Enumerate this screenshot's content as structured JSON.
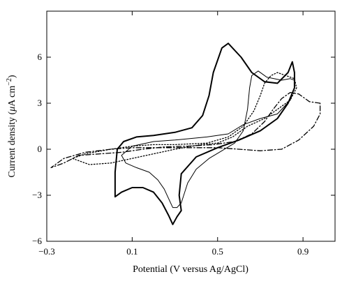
{
  "chart_data": {
    "type": "line",
    "title": "",
    "xlabel": "Potential (V versus Ag/AgCl)",
    "ylabel_prefix": "Current density (",
    "ylabel_mu": "μ",
    "ylabel_unit": "A cm",
    "ylabel_sup": "−2",
    "ylabel_suffix": ")",
    "xlim": [
      -0.3,
      1.05
    ],
    "ylim": [
      -6,
      9
    ],
    "x_ticks": [
      -0.3,
      0.1,
      0.5,
      0.9
    ],
    "x_tick_labels": [
      "−0.3",
      "0.1",
      "0.5",
      "0.9"
    ],
    "y_ticks": [
      -6,
      -3,
      0,
      3,
      6
    ],
    "y_tick_labels": [
      "−6",
      "−3",
      "0",
      "3",
      "6"
    ],
    "grid": false,
    "legend": "none",
    "series": [
      {
        "style": "solid-thick",
        "points": [
          [
            0.33,
            -4.0
          ],
          [
            0.32,
            -3.0
          ],
          [
            0.33,
            -1.6
          ],
          [
            0.4,
            -0.5
          ],
          [
            0.5,
            0.1
          ],
          [
            0.6,
            0.6
          ],
          [
            0.7,
            1.2
          ],
          [
            0.78,
            2.0
          ],
          [
            0.83,
            3.0
          ],
          [
            0.86,
            4.0
          ],
          [
            0.86,
            5.0
          ],
          [
            0.85,
            5.7
          ],
          [
            0.83,
            5.0
          ],
          [
            0.78,
            4.3
          ],
          [
            0.72,
            4.4
          ],
          [
            0.66,
            5.0
          ],
          [
            0.61,
            6.0
          ],
          [
            0.55,
            6.9
          ],
          [
            0.52,
            6.6
          ],
          [
            0.48,
            5.0
          ],
          [
            0.46,
            3.5
          ],
          [
            0.43,
            2.2
          ],
          [
            0.38,
            1.4
          ],
          [
            0.3,
            1.1
          ],
          [
            0.2,
            0.9
          ],
          [
            0.12,
            0.8
          ],
          [
            0.06,
            0.5
          ],
          [
            0.03,
            0.0
          ],
          [
            0.02,
            -1.5
          ],
          [
            0.02,
            -3.1
          ],
          [
            0.05,
            -2.8
          ],
          [
            0.1,
            -2.5
          ],
          [
            0.15,
            -2.5
          ],
          [
            0.2,
            -2.8
          ],
          [
            0.24,
            -3.5
          ],
          [
            0.27,
            -4.3
          ],
          [
            0.29,
            -4.9
          ],
          [
            0.31,
            -4.4
          ],
          [
            0.33,
            -4.0
          ]
        ]
      },
      {
        "style": "solid-thin",
        "points": [
          [
            0.86,
            4.0
          ],
          [
            0.84,
            3.2
          ],
          [
            0.78,
            2.3
          ],
          [
            0.7,
            2.0
          ],
          [
            0.62,
            1.6
          ],
          [
            0.55,
            1.0
          ],
          [
            0.45,
            0.8
          ],
          [
            0.3,
            0.6
          ],
          [
            0.2,
            0.5
          ],
          [
            0.1,
            0.2
          ],
          [
            0.05,
            -0.4
          ],
          [
            0.07,
            -0.9
          ],
          [
            0.12,
            -1.2
          ],
          [
            0.18,
            -1.5
          ],
          [
            0.22,
            -2.0
          ],
          [
            0.25,
            -2.6
          ],
          [
            0.27,
            -3.2
          ],
          [
            0.29,
            -3.8
          ],
          [
            0.31,
            -3.8
          ],
          [
            0.33,
            -3.5
          ],
          [
            0.36,
            -2.2
          ],
          [
            0.4,
            -1.3
          ],
          [
            0.46,
            -0.6
          ],
          [
            0.52,
            -0.1
          ],
          [
            0.58,
            0.4
          ],
          [
            0.62,
            1.2
          ],
          [
            0.64,
            2.6
          ],
          [
            0.65,
            4.0
          ],
          [
            0.66,
            4.8
          ],
          [
            0.69,
            5.1
          ],
          [
            0.73,
            4.7
          ],
          [
            0.8,
            4.5
          ],
          [
            0.84,
            4.6
          ],
          [
            0.86,
            4.5
          ],
          [
            0.86,
            4.0
          ]
        ]
      },
      {
        "style": "dotted",
        "points": [
          [
            0.87,
            4.0
          ],
          [
            0.84,
            3.2
          ],
          [
            0.78,
            2.6
          ],
          [
            0.72,
            2.0
          ],
          [
            0.64,
            1.5
          ],
          [
            0.57,
            0.8
          ],
          [
            0.5,
            0.4
          ],
          [
            0.42,
            0.3
          ],
          [
            0.3,
            0.0
          ],
          [
            0.2,
            -0.3
          ],
          [
            0.1,
            -0.6
          ],
          [
            0.0,
            -0.9
          ],
          [
            -0.1,
            -1.0
          ],
          [
            -0.18,
            -0.6
          ],
          [
            -0.12,
            -0.3
          ],
          [
            0.0,
            0.0
          ],
          [
            0.1,
            0.2
          ],
          [
            0.2,
            0.3
          ],
          [
            0.3,
            0.3
          ],
          [
            0.45,
            0.4
          ],
          [
            0.55,
            0.8
          ],
          [
            0.62,
            1.5
          ],
          [
            0.67,
            2.5
          ],
          [
            0.7,
            3.5
          ],
          [
            0.72,
            4.3
          ],
          [
            0.75,
            4.8
          ],
          [
            0.78,
            5.0
          ],
          [
            0.82,
            4.8
          ],
          [
            0.86,
            4.6
          ],
          [
            0.87,
            4.0
          ]
        ]
      },
      {
        "style": "dash-dot",
        "points": [
          [
            0.98,
            3.0
          ],
          [
            0.93,
            3.1
          ],
          [
            0.88,
            3.6
          ],
          [
            0.84,
            3.7
          ],
          [
            0.8,
            3.3
          ],
          [
            0.76,
            2.6
          ],
          [
            0.72,
            1.8
          ],
          [
            0.66,
            1.0
          ],
          [
            0.58,
            0.5
          ],
          [
            0.48,
            0.3
          ],
          [
            0.36,
            0.2
          ],
          [
            0.25,
            0.15
          ],
          [
            0.15,
            0.0
          ],
          [
            0.05,
            -0.2
          ],
          [
            -0.05,
            -0.3
          ],
          [
            -0.15,
            -0.4
          ],
          [
            -0.22,
            -0.9
          ],
          [
            -0.28,
            -1.2
          ],
          [
            -0.22,
            -0.6
          ],
          [
            -0.12,
            -0.2
          ],
          [
            0.0,
            0.0
          ],
          [
            0.1,
            0.1
          ],
          [
            0.2,
            0.1
          ],
          [
            0.3,
            0.1
          ],
          [
            0.4,
            0.1
          ],
          [
            0.5,
            0.1
          ],
          [
            0.6,
            0.0
          ],
          [
            0.7,
            -0.1
          ],
          [
            0.8,
            0.0
          ],
          [
            0.88,
            0.6
          ],
          [
            0.95,
            1.5
          ],
          [
            0.98,
            2.3
          ],
          [
            0.98,
            3.0
          ]
        ]
      }
    ]
  }
}
